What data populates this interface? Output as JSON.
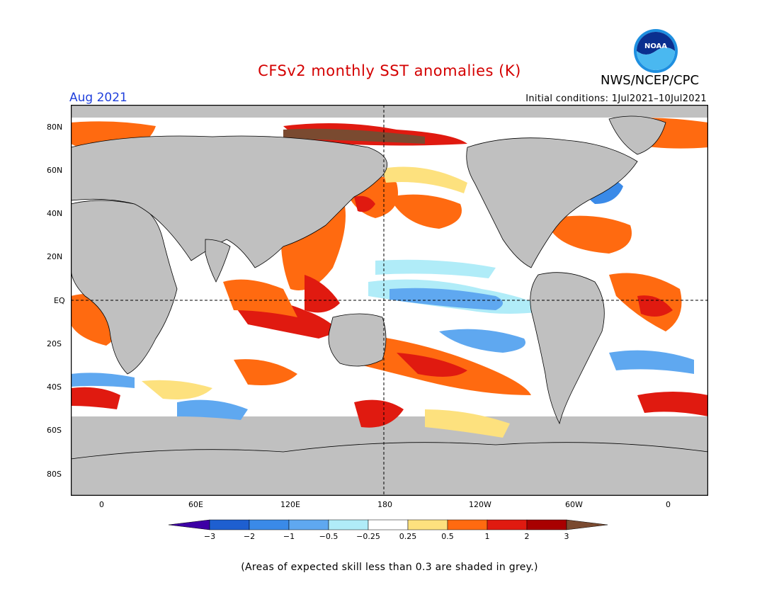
{
  "header": {
    "title": "CFSv2 monthly SST anomalies (K)",
    "month": "Aug 2021",
    "agency": "NWS/NCEP/CPC",
    "initial_conditions": "Initial conditions: 1Jul2021–10Jul2021",
    "logo_text": "NOAA"
  },
  "map": {
    "lat_labels": [
      "80N",
      "60N",
      "40N",
      "20N",
      "EQ",
      "20S",
      "40S",
      "60S",
      "80S"
    ],
    "lon_labels": [
      "0",
      "60E",
      "120E",
      "180",
      "120W",
      "60W",
      "0"
    ],
    "colors": {
      "land": "#c0c0c0",
      "grey_skill": "#c0c0c0",
      "ocean_neutral": "#ffffff"
    }
  },
  "colorbar": {
    "labels": [
      "−3",
      "−2",
      "−1",
      "−0.5",
      "−0.25",
      "0.25",
      "0.5",
      "1",
      "2",
      "3"
    ],
    "colors": [
      "#3d00a5",
      "#1e5fd0",
      "#3a8ae8",
      "#5fa8f0",
      "#b0ecf8",
      "#ffffff",
      "#fde17e",
      "#ff6a10",
      "#e01a10",
      "#a80000",
      "#7a4a30"
    ]
  },
  "footer": {
    "caption": "(Areas of expected skill less than 0.3 are shaded in grey.)"
  }
}
